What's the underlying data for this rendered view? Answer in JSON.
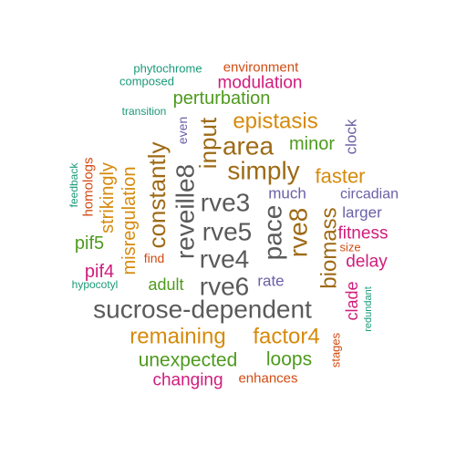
{
  "colors": {
    "gray": "#5a5a5a",
    "orange": "#d68a0c",
    "green": "#4e9a1e",
    "magenta": "#d01c7c",
    "teal": "#1a9a78",
    "red": "#d24b12",
    "purple": "#6a60a8",
    "brown": "#9e6a16"
  },
  "words": [
    {
      "text": "sucrose-dependent",
      "color": "gray"
    },
    {
      "text": "reveille8",
      "color": "gray"
    },
    {
      "text": "rve3",
      "color": "gray"
    },
    {
      "text": "rve5",
      "color": "gray"
    },
    {
      "text": "rve4",
      "color": "gray"
    },
    {
      "text": "rve6",
      "color": "gray"
    },
    {
      "text": "pace",
      "color": "gray"
    },
    {
      "text": "simply",
      "color": "brown"
    },
    {
      "text": "area",
      "color": "brown"
    },
    {
      "text": "input",
      "color": "brown"
    },
    {
      "text": "rve8",
      "color": "brown"
    },
    {
      "text": "constantly",
      "color": "brown"
    },
    {
      "text": "biomass",
      "color": "brown"
    },
    {
      "text": "remaining",
      "color": "orange"
    },
    {
      "text": "factor4",
      "color": "orange"
    },
    {
      "text": "epistasis",
      "color": "orange"
    },
    {
      "text": "faster",
      "color": "orange"
    },
    {
      "text": "misregulation",
      "color": "orange"
    },
    {
      "text": "strikingly",
      "color": "orange"
    },
    {
      "text": "unexpected",
      "color": "green"
    },
    {
      "text": "loops",
      "color": "green"
    },
    {
      "text": "perturbation",
      "color": "green"
    },
    {
      "text": "minor",
      "color": "green"
    },
    {
      "text": "adult",
      "color": "green"
    },
    {
      "text": "pif5",
      "color": "green"
    },
    {
      "text": "changing",
      "color": "magenta"
    },
    {
      "text": "modulation",
      "color": "magenta"
    },
    {
      "text": "fitness",
      "color": "magenta"
    },
    {
      "text": "delay",
      "color": "magenta"
    },
    {
      "text": "clade",
      "color": "magenta"
    },
    {
      "text": "pif4",
      "color": "magenta"
    },
    {
      "text": "environment",
      "color": "red"
    },
    {
      "text": "enhances",
      "color": "red"
    },
    {
      "text": "find",
      "color": "red"
    },
    {
      "text": "size",
      "color": "red"
    },
    {
      "text": "homologs",
      "color": "red"
    },
    {
      "text": "stages",
      "color": "red"
    },
    {
      "text": "phytochrome",
      "color": "teal"
    },
    {
      "text": "composed",
      "color": "teal"
    },
    {
      "text": "transition",
      "color": "teal"
    },
    {
      "text": "feedback",
      "color": "teal"
    },
    {
      "text": "hypocotyl",
      "color": "teal"
    },
    {
      "text": "redundant",
      "color": "teal"
    },
    {
      "text": "much",
      "color": "purple"
    },
    {
      "text": "circadian",
      "color": "purple"
    },
    {
      "text": "larger",
      "color": "purple"
    },
    {
      "text": "rate",
      "color": "purple"
    },
    {
      "text": "clock",
      "color": "purple"
    },
    {
      "text": "even",
      "color": "purple"
    }
  ]
}
